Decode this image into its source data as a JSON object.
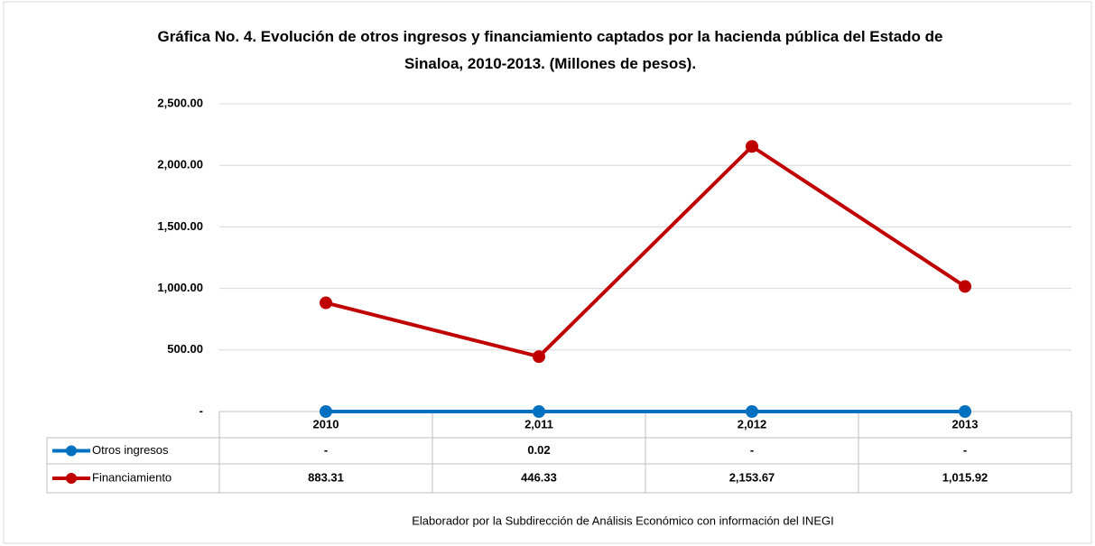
{
  "chart_data": {
    "type": "line",
    "title": "Gráfica No. 4. Evolución de otros ingresos y  financiamiento captados por la hacienda pública del Estado de Sinaloa, 2010-2013. (Millones de pesos).",
    "categories": [
      "2010",
      "2,011",
      "2,012",
      "2013"
    ],
    "series": [
      {
        "name": "Otros ingresos",
        "color": "#0070c0",
        "values": [
          0,
          0.02,
          0,
          0
        ],
        "value_labels": [
          "-",
          "0.02",
          "-",
          "-"
        ]
      },
      {
        "name": "Financiamiento",
        "color": "#c00000",
        "values": [
          883.31,
          446.33,
          2153.67,
          1015.92
        ],
        "value_labels": [
          "883.31",
          "446.33",
          "2,153.67",
          "1,015.92"
        ]
      }
    ],
    "ylim": [
      0,
      2500
    ],
    "yticks": [
      {
        "value": 0,
        "label": "-"
      },
      {
        "value": 500,
        "label": "500.00"
      },
      {
        "value": 1000,
        "label": "1,000.00"
      },
      {
        "value": 1500,
        "label": "1,500.00"
      },
      {
        "value": 2000,
        "label": "2,000.00"
      },
      {
        "value": 2500,
        "label": "2,500.00"
      }
    ],
    "grid": true,
    "source": "Elaborador por la Subdirección de Análisis Económico con información del INEGI"
  }
}
